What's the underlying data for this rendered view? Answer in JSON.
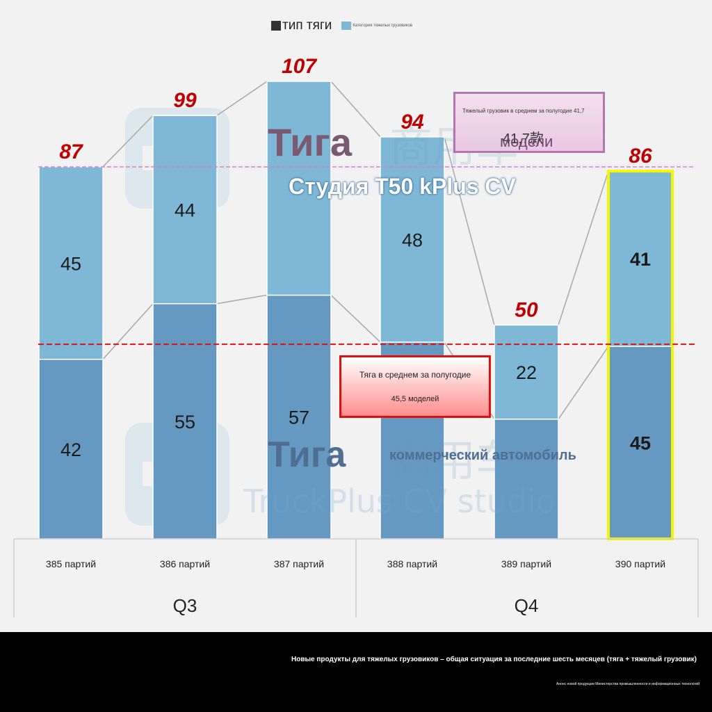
{
  "legend": {
    "traction": "тип тяги",
    "heavy": "Категория тяжелых грузовиков"
  },
  "chart_data": {
    "type": "bar",
    "stacked": true,
    "categories": [
      "385 партий",
      "386 партий",
      "387 партий",
      "388 партий",
      "389 партий",
      "390 партий"
    ],
    "groups": [
      {
        "label": "Q3",
        "categories": [
          "385 партий",
          "386 партий",
          "387 партий"
        ]
      },
      {
        "label": "Q4",
        "categories": [
          "388 партий",
          "389 партий",
          "390 партий"
        ]
      }
    ],
    "series": [
      {
        "name": "тип тяги",
        "values": [
          42,
          55,
          57,
          46,
          28,
          45
        ],
        "labels": [
          "42",
          "55",
          "57",
          "",
          "",
          "45"
        ],
        "color": "#6699c2"
      },
      {
        "name": "Категория тяжелых грузовиков",
        "values": [
          45,
          44,
          50,
          48,
          22,
          41
        ],
        "labels": [
          "45",
          "44",
          "",
          "48",
          "22",
          "41"
        ],
        "color": "#7eb8d6"
      }
    ],
    "totals": [
      87,
      99,
      107,
      94,
      50,
      86
    ],
    "highlighted": "390 партий",
    "reference_lines": [
      {
        "name": "heavy-avg",
        "value": 87,
        "color": "#d080d0"
      },
      {
        "name": "traction-avg",
        "value": 45.5,
        "color": "#e01010"
      }
    ],
    "ylim": [
      0,
      107
    ]
  },
  "overlays": {
    "top_title": "Тига",
    "top_subtitle": "Студия T50 kPlus CV",
    "bottom_title": "Тига",
    "bottom_subtitle": "коммерческий автомобиль",
    "watermark_cn": "商用车",
    "watermark_en": "TruckPlus CV studio"
  },
  "annotations": {
    "heavy_avg_line1": "Тяжелый грузовик в среднем за полугодие 41,7",
    "heavy_avg_line2": "41,7款",
    "heavy_avg_models": "модели",
    "traction_avg_line1": "Тяга в среднем за полугодие",
    "traction_avg_line2": "45,5 моделей"
  },
  "footer": {
    "title": "Новые продукты для тяжелых грузовиков – общая ситуация за последние шесть месяцев (тяга + тяжелый грузовик)",
    "source": "Анонс новой продукции Министерства промышленности и информационных технологий"
  },
  "colors": {
    "background": "#f2f2f2",
    "total_label": "#c00000",
    "highlight_border": "#f5f500"
  }
}
